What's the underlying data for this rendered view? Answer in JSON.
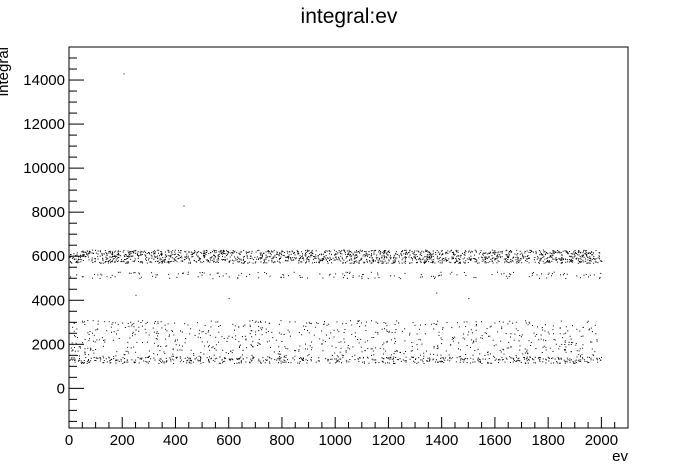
{
  "chart_data": {
    "type": "scatter",
    "title": "integral:ev",
    "xlabel": "ev",
    "ylabel": "integral",
    "xlim": [
      0,
      2100
    ],
    "ylim": [
      -1800,
      15500
    ],
    "x_ticks": [
      0,
      200,
      400,
      600,
      800,
      1000,
      1200,
      1400,
      1600,
      1800,
      2000
    ],
    "y_ticks": [
      0,
      2000,
      4000,
      6000,
      8000,
      10000,
      12000,
      14000
    ],
    "grid": false,
    "legend": "none",
    "marker_color": "#000000",
    "x_range_of_points": [
      0,
      2000
    ],
    "point_clusters": [
      {
        "y_center": 6000,
        "y_spread": 300,
        "count": 1700
      },
      {
        "y_center": 5150,
        "y_spread": 150,
        "count": 160
      },
      {
        "y_center": 1300,
        "y_spread": 150,
        "count": 500
      },
      {
        "y_center": 2200,
        "y_spread": 900,
        "count": 800
      }
    ],
    "outliers": [
      {
        "x": 205,
        "y": 14300
      },
      {
        "x": 430,
        "y": 8300
      },
      {
        "x": 250,
        "y": 4250
      },
      {
        "x": 600,
        "y": 4100
      },
      {
        "x": 1380,
        "y": 4350
      },
      {
        "x": 1500,
        "y": 4100
      }
    ]
  }
}
